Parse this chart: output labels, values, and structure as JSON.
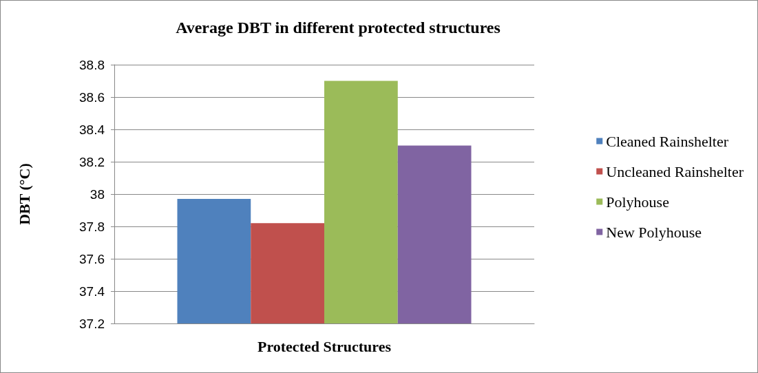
{
  "chart_data": {
    "type": "bar",
    "title": "Average DBT in different protected structures",
    "xlabel": "Protected Structures",
    "ylabel": "DBT (°C)",
    "categories": [
      null
    ],
    "series": [
      {
        "name": "Cleaned Rainshelter",
        "color": "#4f81bd",
        "values": [
          37.97
        ]
      },
      {
        "name": "Uncleaned Rainshelter",
        "color": "#c0504d",
        "values": [
          37.82
        ]
      },
      {
        "name": "Polyhouse",
        "color": "#9bbb59",
        "values": [
          38.7
        ]
      },
      {
        "name": "New Polyhouse",
        "color": "#8064a2",
        "values": [
          38.3
        ]
      }
    ],
    "ylim": [
      37.2,
      38.8
    ],
    "yticks": [
      37.2,
      37.4,
      37.6,
      37.8,
      38,
      38.2,
      38.4,
      38.6,
      38.8
    ],
    "grid": "y",
    "legend": "right"
  }
}
